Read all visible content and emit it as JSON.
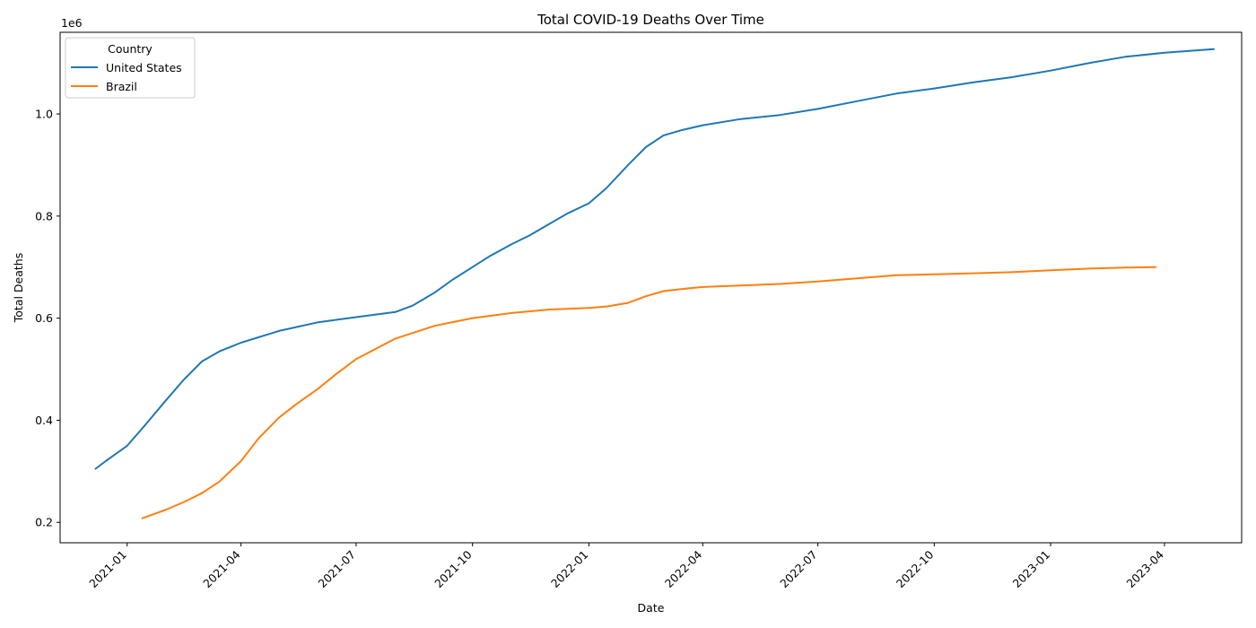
{
  "chart_data": {
    "type": "line",
    "title": "Total COVID-19 Deaths Over Time",
    "xlabel": "Date",
    "ylabel": "Total Deaths",
    "y_offset_label": "1e6",
    "y_scale": 1000000,
    "xlim": [
      "2020-11-09",
      "2023-06-01"
    ],
    "ylim": [
      160000,
      1160000
    ],
    "x_ticks": [
      {
        "date": "2021-01-01",
        "label": "2021-01"
      },
      {
        "date": "2021-04-01",
        "label": "2021-04"
      },
      {
        "date": "2021-07-01",
        "label": "2021-07"
      },
      {
        "date": "2021-10-01",
        "label": "2021-10"
      },
      {
        "date": "2022-01-01",
        "label": "2022-01"
      },
      {
        "date": "2022-04-01",
        "label": "2022-04"
      },
      {
        "date": "2022-07-01",
        "label": "2022-07"
      },
      {
        "date": "2022-10-01",
        "label": "2022-10"
      },
      {
        "date": "2023-01-01",
        "label": "2023-01"
      },
      {
        "date": "2023-04-01",
        "label": "2023-04"
      }
    ],
    "y_ticks": [
      {
        "value": 200000,
        "label": "0.2"
      },
      {
        "value": 400000,
        "label": "0.4"
      },
      {
        "value": 600000,
        "label": "0.6"
      },
      {
        "value": 800000,
        "label": "0.8"
      },
      {
        "value": 1000000,
        "label": "1.0"
      }
    ],
    "grid": false,
    "legend": {
      "title": "Country",
      "placement": "top-left"
    },
    "series": [
      {
        "name": "United States",
        "color": "#1f77b4",
        "points": [
          [
            "2020-12-07",
            305000
          ],
          [
            "2020-12-15",
            320000
          ],
          [
            "2021-01-01",
            350000
          ],
          [
            "2021-01-15",
            390000
          ],
          [
            "2021-02-01",
            440000
          ],
          [
            "2021-02-15",
            480000
          ],
          [
            "2021-03-01",
            515000
          ],
          [
            "2021-03-15",
            535000
          ],
          [
            "2021-04-01",
            552000
          ],
          [
            "2021-05-01",
            575000
          ],
          [
            "2021-06-01",
            592000
          ],
          [
            "2021-07-01",
            602000
          ],
          [
            "2021-08-01",
            612000
          ],
          [
            "2021-08-15",
            625000
          ],
          [
            "2021-09-01",
            650000
          ],
          [
            "2021-09-15",
            675000
          ],
          [
            "2021-10-01",
            700000
          ],
          [
            "2021-10-15",
            722000
          ],
          [
            "2021-11-01",
            745000
          ],
          [
            "2021-11-15",
            762000
          ],
          [
            "2021-12-01",
            785000
          ],
          [
            "2021-12-15",
            805000
          ],
          [
            "2022-01-01",
            825000
          ],
          [
            "2022-01-15",
            855000
          ],
          [
            "2022-02-01",
            900000
          ],
          [
            "2022-02-15",
            935000
          ],
          [
            "2022-03-01",
            958000
          ],
          [
            "2022-03-15",
            968000
          ],
          [
            "2022-04-01",
            978000
          ],
          [
            "2022-05-01",
            990000
          ],
          [
            "2022-06-01",
            998000
          ],
          [
            "2022-07-01",
            1010000
          ],
          [
            "2022-08-01",
            1025000
          ],
          [
            "2022-09-01",
            1040000
          ],
          [
            "2022-10-01",
            1050000
          ],
          [
            "2022-11-01",
            1062000
          ],
          [
            "2022-12-01",
            1072000
          ],
          [
            "2023-01-01",
            1085000
          ],
          [
            "2023-02-01",
            1100000
          ],
          [
            "2023-03-01",
            1112000
          ],
          [
            "2023-04-01",
            1120000
          ],
          [
            "2023-05-10",
            1127000
          ]
        ]
      },
      {
        "name": "Brazil",
        "color": "#ff7f0e",
        "points": [
          [
            "2021-01-13",
            208000
          ],
          [
            "2021-02-01",
            225000
          ],
          [
            "2021-02-15",
            240000
          ],
          [
            "2021-03-01",
            257000
          ],
          [
            "2021-03-15",
            280000
          ],
          [
            "2021-04-01",
            320000
          ],
          [
            "2021-04-15",
            365000
          ],
          [
            "2021-05-01",
            405000
          ],
          [
            "2021-05-15",
            432000
          ],
          [
            "2021-06-01",
            462000
          ],
          [
            "2021-06-15",
            490000
          ],
          [
            "2021-07-01",
            520000
          ],
          [
            "2021-08-01",
            560000
          ],
          [
            "2021-09-01",
            585000
          ],
          [
            "2021-10-01",
            600000
          ],
          [
            "2021-11-01",
            610000
          ],
          [
            "2021-12-01",
            617000
          ],
          [
            "2022-01-01",
            620000
          ],
          [
            "2022-01-15",
            623000
          ],
          [
            "2022-02-01",
            630000
          ],
          [
            "2022-02-15",
            643000
          ],
          [
            "2022-03-01",
            653000
          ],
          [
            "2022-03-15",
            657000
          ],
          [
            "2022-04-01",
            661000
          ],
          [
            "2022-05-01",
            664000
          ],
          [
            "2022-06-01",
            667000
          ],
          [
            "2022-07-01",
            672000
          ],
          [
            "2022-08-01",
            678000
          ],
          [
            "2022-09-01",
            684000
          ],
          [
            "2022-10-01",
            686000
          ],
          [
            "2022-11-01",
            688000
          ],
          [
            "2022-12-01",
            690000
          ],
          [
            "2023-01-01",
            694000
          ],
          [
            "2023-02-01",
            697000
          ],
          [
            "2023-03-01",
            699000
          ],
          [
            "2023-03-25",
            700000
          ]
        ]
      }
    ]
  }
}
